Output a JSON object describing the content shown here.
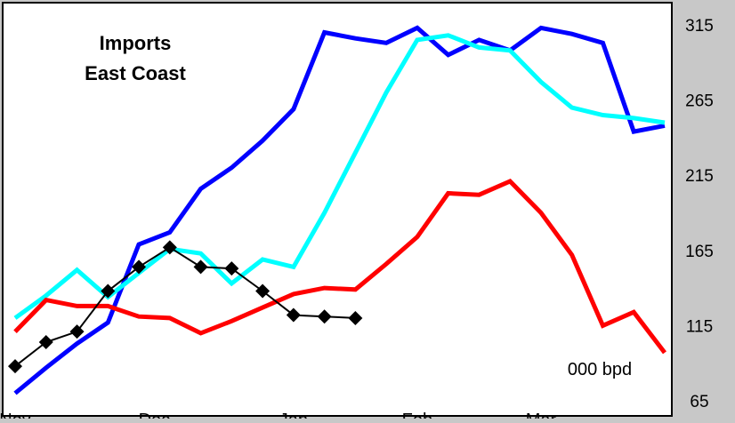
{
  "chart_data": {
    "type": "line",
    "title_lines": [
      "Imports",
      "East Coast"
    ],
    "unit_label": "000 bpd",
    "y_axis_position": "right",
    "ylim": [
      65,
      315
    ],
    "y_ticks": [
      315,
      265,
      215,
      165,
      115,
      65
    ],
    "grid": false,
    "x_tick_labels": [
      {
        "label": "Nov",
        "index": 0
      },
      {
        "label": "Dec",
        "index": 4.5
      },
      {
        "label": "Jan",
        "index": 9
      },
      {
        "label": "Feb",
        "index": 13
      },
      {
        "label": "Mar",
        "index": 17
      }
    ],
    "x_range": [
      0,
      21
    ],
    "series": [
      {
        "color": "#0000ff",
        "marker": "none",
        "x": [
          0,
          1,
          2,
          3,
          4,
          5,
          6,
          7,
          8,
          9,
          10,
          11,
          12,
          13,
          14,
          15,
          16,
          17,
          18,
          19,
          20,
          21
        ],
        "values": [
          70,
          87,
          103,
          117,
          169,
          177,
          206,
          220,
          238,
          259,
          310,
          306,
          303,
          313,
          295,
          305,
          298,
          313,
          309,
          303,
          244,
          248
        ]
      },
      {
        "color": "#00ffff",
        "marker": "none",
        "x": [
          0,
          1,
          2,
          3,
          4,
          5,
          6,
          7,
          8,
          9,
          10,
          11,
          12,
          13,
          14,
          15,
          16,
          17,
          18,
          19,
          20,
          21
        ],
        "values": [
          120,
          135,
          152,
          134,
          150,
          166,
          163,
          143,
          159,
          154,
          190,
          230,
          270,
          305,
          308,
          300,
          298,
          277,
          260,
          255,
          253,
          250
        ]
      },
      {
        "color": "#ff0000",
        "marker": "none",
        "x": [
          0,
          1,
          2,
          3,
          4,
          5,
          6,
          7,
          8,
          9,
          10,
          11,
          12,
          13,
          14,
          15,
          16,
          17,
          18,
          19,
          20,
          21
        ],
        "values": [
          111,
          132,
          128,
          128,
          121,
          120,
          110,
          118,
          127,
          136,
          140,
          139,
          156,
          174,
          203,
          202,
          211,
          190,
          162,
          115,
          124,
          97
        ]
      },
      {
        "color": "#000000",
        "marker": "diamond",
        "x": [
          0,
          1,
          2,
          3,
          4,
          5,
          6,
          7,
          8,
          9,
          10,
          11
        ],
        "values": [
          88,
          104,
          111,
          138,
          154,
          167,
          154,
          153,
          138,
          122,
          121,
          120
        ]
      }
    ]
  }
}
